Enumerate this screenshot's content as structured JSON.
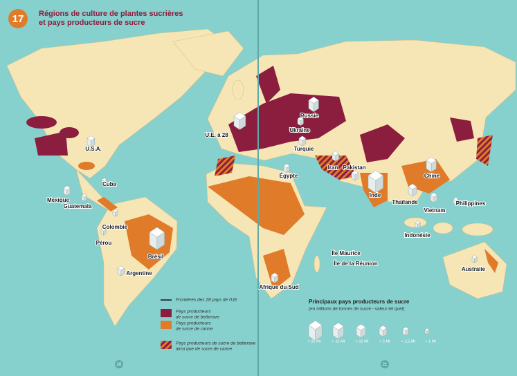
{
  "header": {
    "number": "17",
    "title_lines": [
      "Régions de culture de plantes sucrières",
      "et pays producteurs de sucre"
    ]
  },
  "labels": [
    "U.S.A.",
    "Cuba",
    "Mexique",
    "Guatemala",
    "Colombie",
    "Pérou",
    "Brésil",
    "Argentine",
    "U.E. à 28",
    "Russie",
    "Ukraine",
    "Turquie",
    "Iran",
    "Pakistan",
    "Égypte",
    "Inde",
    "Chine",
    "Thaïlande",
    "Vietnam",
    "Philippines",
    "Indonésie",
    "Île Maurice",
    "Île de la Réunion",
    "Afrique du Sud",
    "Australie"
  ],
  "legend": [
    {
      "lines": [
        "Frontières des 28 pays de l'UE"
      ]
    },
    {
      "lines": [
        "Pays producteurs",
        "de sucre de betterave"
      ]
    },
    {
      "lines": [
        "Pays producteurs",
        "de sucre de canne"
      ]
    },
    {
      "lines": [
        "Pays producteurs de sucre de betterave",
        "ainsi que de sucre de canne"
      ]
    }
  ],
  "scale": {
    "title": "Principaux pays producteurs de sucre",
    "subtitle": "(en millions de tonnes de sucre - valeur tel quel)",
    "sizes": [
      "> 20 Mt",
      "> 15 Mt",
      "> 10 Mt",
      "> 5 Mt",
      "> 2,5 Mt",
      "> 1 Mt"
    ]
  },
  "page_numbers": [
    "20",
    "21"
  ]
}
